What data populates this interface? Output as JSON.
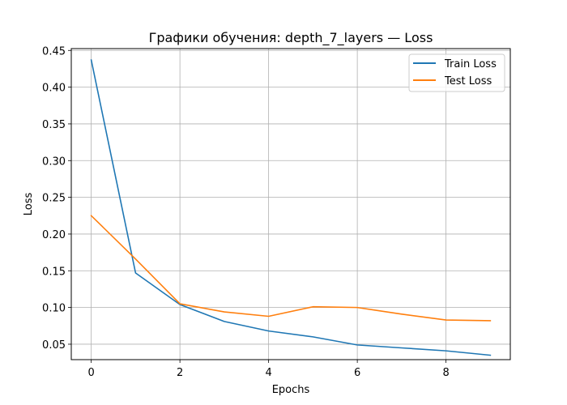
{
  "chart_data": {
    "type": "line",
    "title": "Графики обучения: depth_7_layers — Loss",
    "xlabel": "Epochs",
    "ylabel": "Loss",
    "xlim": [
      -0.45,
      9.45
    ],
    "ylim": [
      0.029,
      0.4525
    ],
    "x_ticks": [
      0,
      2,
      4,
      6,
      8
    ],
    "y_ticks": [
      0.05,
      0.1,
      0.15,
      0.2,
      0.25,
      0.3,
      0.35,
      0.4,
      0.45
    ],
    "x_tick_labels": [
      "0",
      "2",
      "4",
      "6",
      "8"
    ],
    "y_tick_labels": [
      "0.05",
      "0.10",
      "0.15",
      "0.20",
      "0.25",
      "0.30",
      "0.35",
      "0.40",
      "0.45"
    ],
    "grid": true,
    "legend_position": "top-right",
    "x": [
      0,
      1,
      2,
      3,
      4,
      5,
      6,
      7,
      8,
      9
    ],
    "series": [
      {
        "name": "Train Loss",
        "color": "#1f77b4",
        "values": [
          0.437,
          0.147,
          0.104,
          0.081,
          0.068,
          0.06,
          0.049,
          0.045,
          0.041,
          0.035
        ]
      },
      {
        "name": "Test Loss",
        "color": "#ff7f0e",
        "values": [
          0.225,
          0.166,
          0.105,
          0.094,
          0.088,
          0.101,
          0.1,
          0.091,
          0.083,
          0.082
        ]
      }
    ]
  }
}
